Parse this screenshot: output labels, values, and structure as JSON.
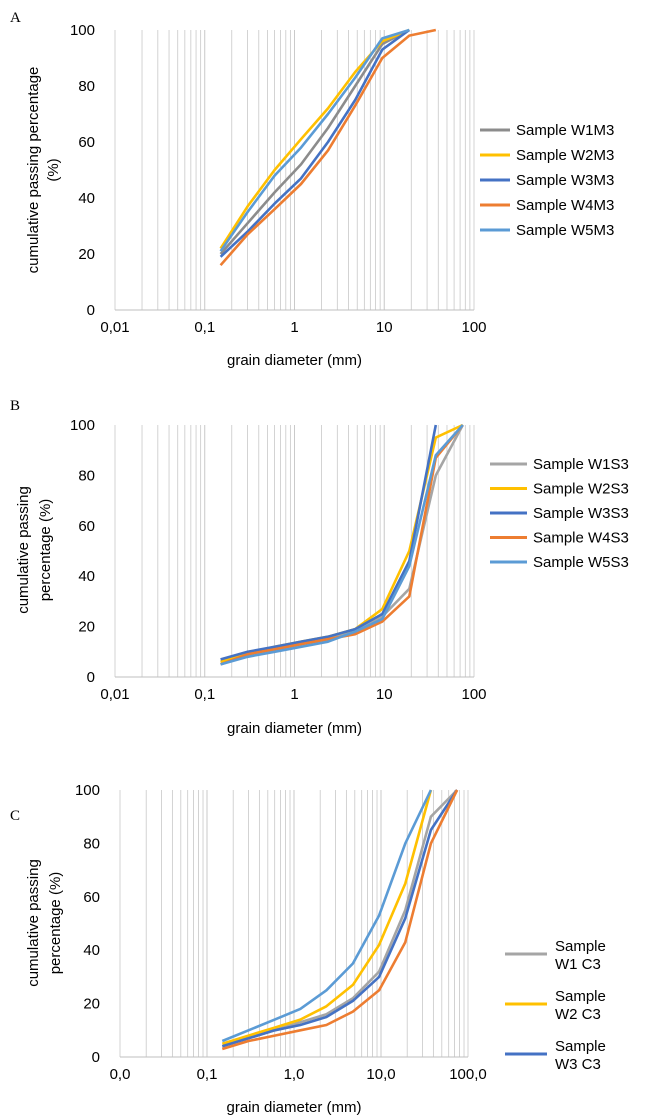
{
  "colors": {
    "grid": "#c8c8c8",
    "gray": "#8c8c8c",
    "lightgray": "#a5a5a5",
    "yellow": "#ffc000",
    "blue": "#4472c4",
    "orange": "#ed7d31",
    "lightblue": "#5b9bd5"
  },
  "chart_data": [
    {
      "panel": "A",
      "type": "line",
      "xscale": "log",
      "xlim": [
        0.01,
        100
      ],
      "ylim": [
        0,
        100
      ],
      "xticks": [
        "0,01",
        "0,1",
        "1",
        "10",
        "100"
      ],
      "yticks": [
        "0",
        "20",
        "40",
        "60",
        "80",
        "100"
      ],
      "xlabel": "grain diameter (mm)",
      "ylabel": [
        "cumulative passing percentage",
        "(%)"
      ],
      "grid": true,
      "legend_position": "right",
      "series": [
        {
          "name": "Sample W1M3",
          "color": "#8c8c8c",
          "x": [
            0.15,
            0.3,
            0.6,
            1.18,
            2.36,
            4.75,
            9.5,
            19
          ],
          "y": [
            20,
            31,
            42,
            52,
            65,
            80,
            95,
            100
          ]
        },
        {
          "name": "Sample W2M3",
          "color": "#ffc000",
          "x": [
            0.15,
            0.3,
            0.6,
            1.18,
            2.36,
            4.75,
            9.5,
            19
          ],
          "y": [
            22,
            37,
            50,
            61,
            72,
            85,
            96,
            100
          ]
        },
        {
          "name": "Sample W3M3",
          "color": "#4472c4",
          "x": [
            0.15,
            0.3,
            0.6,
            1.18,
            2.36,
            4.75,
            9.5,
            19
          ],
          "y": [
            19,
            28,
            38,
            47,
            60,
            75,
            93,
            100
          ]
        },
        {
          "name": "Sample W4M3",
          "color": "#ed7d31",
          "x": [
            0.15,
            0.3,
            0.6,
            1.18,
            2.36,
            4.75,
            9.5,
            19,
            37.5
          ],
          "y": [
            16,
            27,
            36,
            45,
            57,
            73,
            90,
            98,
            100
          ]
        },
        {
          "name": "Sample W5M3",
          "color": "#5b9bd5",
          "x": [
            0.15,
            0.3,
            0.6,
            1.18,
            2.36,
            4.75,
            9.5,
            19
          ],
          "y": [
            21,
            35,
            48,
            58,
            70,
            83,
            97,
            100
          ]
        }
      ]
    },
    {
      "panel": "B",
      "type": "line",
      "xscale": "log",
      "xlim": [
        0.01,
        100
      ],
      "ylim": [
        0,
        100
      ],
      "xticks": [
        "0,01",
        "0,1",
        "1",
        "10",
        "100"
      ],
      "yticks": [
        "0",
        "20",
        "40",
        "60",
        "80",
        "100"
      ],
      "xlabel": "grain diameter (mm)",
      "ylabel": [
        "cumulative passing",
        "percentage (%)"
      ],
      "grid": true,
      "legend_position": "right",
      "series": [
        {
          "name": "Sample W1S3",
          "color": "#a5a5a5",
          "x": [
            0.15,
            0.3,
            0.6,
            1.18,
            2.36,
            4.75,
            9.5,
            19,
            37.5,
            75
          ],
          "y": [
            6,
            9,
            11,
            13,
            15,
            18,
            24,
            35,
            80,
            100
          ]
        },
        {
          "name": "Sample W2S3",
          "color": "#ffc000",
          "x": [
            0.15,
            0.3,
            0.6,
            1.18,
            2.36,
            4.75,
            9.5,
            19,
            37.5,
            75
          ],
          "y": [
            6,
            9,
            12,
            14,
            16,
            19,
            27,
            50,
            95,
            100
          ]
        },
        {
          "name": "Sample W3S3",
          "color": "#4472c4",
          "x": [
            0.15,
            0.3,
            0.6,
            1.18,
            2.36,
            4.75,
            9.5,
            19,
            37.5
          ],
          "y": [
            7,
            10,
            12,
            14,
            16,
            19,
            25,
            46,
            100
          ]
        },
        {
          "name": "Sample W4S3",
          "color": "#ed7d31",
          "x": [
            0.15,
            0.3,
            0.6,
            1.18,
            2.36,
            4.75,
            9.5,
            19,
            37.5,
            75
          ],
          "y": [
            5,
            9,
            11,
            13,
            15,
            17,
            22,
            32,
            87,
            100
          ]
        },
        {
          "name": "Sample W5S3",
          "color": "#5b9bd5",
          "x": [
            0.15,
            0.3,
            0.6,
            1.18,
            2.36,
            4.75,
            9.5,
            19,
            37.5,
            75
          ],
          "y": [
            5,
            8,
            10,
            12,
            14,
            18,
            23,
            44,
            88,
            100
          ]
        }
      ]
    },
    {
      "panel": "C",
      "type": "line",
      "xscale": "log",
      "xlim": [
        0.01,
        100
      ],
      "ylim": [
        0,
        100
      ],
      "xticks": [
        "0,0",
        "0,1",
        "1,0",
        "10,0",
        "100,0"
      ],
      "yticks": [
        "0",
        "20",
        "40",
        "60",
        "80",
        "100"
      ],
      "xlabel": "grain diameter (mm)",
      "ylabel": [
        "cumulative passing",
        "percentage (%)"
      ],
      "grid": true,
      "legend_position": "right",
      "series": [
        {
          "name": "Sample W1 C3",
          "color": "#a5a5a5",
          "x": [
            0.15,
            0.3,
            0.6,
            1.18,
            2.36,
            4.75,
            9.5,
            19,
            37.5,
            75
          ],
          "y": [
            4,
            7,
            10,
            13,
            16,
            22,
            32,
            55,
            90,
            100
          ]
        },
        {
          "name": "Sample W2 C3",
          "color": "#ffc000",
          "x": [
            0.15,
            0.3,
            0.6,
            1.18,
            2.36,
            4.75,
            9.5,
            19,
            37.5
          ],
          "y": [
            5,
            8,
            11,
            14,
            19,
            27,
            42,
            65,
            100
          ]
        },
        {
          "name": "Sample W3 C3",
          "color": "#4472c4",
          "x": [
            0.15,
            0.3,
            0.6,
            1.18,
            2.36,
            4.75,
            9.5,
            19,
            37.5,
            75
          ],
          "y": [
            4,
            7,
            10,
            12,
            15,
            21,
            30,
            52,
            85,
            100
          ]
        },
        {
          "name": "",
          "color": "#ed7d31",
          "x": [
            0.15,
            0.3,
            0.6,
            1.18,
            2.36,
            4.75,
            9.5,
            19,
            37.5,
            75
          ],
          "y": [
            3,
            6,
            8,
            10,
            12,
            17,
            25,
            43,
            80,
            100
          ]
        },
        {
          "name": "",
          "color": "#5b9bd5",
          "x": [
            0.15,
            0.3,
            0.6,
            1.18,
            2.36,
            4.75,
            9.5,
            19,
            37.5
          ],
          "y": [
            6,
            10,
            14,
            18,
            25,
            35,
            53,
            80,
            100
          ]
        }
      ],
      "legend_labels": [
        {
          "line1": "Sample",
          "line2": "W1 C3",
          "color": "#a5a5a5"
        },
        {
          "line1": "Sample",
          "line2": "W2 C3",
          "color": "#ffc000"
        },
        {
          "line1": "Sample",
          "line2": "W3 C3",
          "color": "#4472c4"
        }
      ]
    }
  ]
}
